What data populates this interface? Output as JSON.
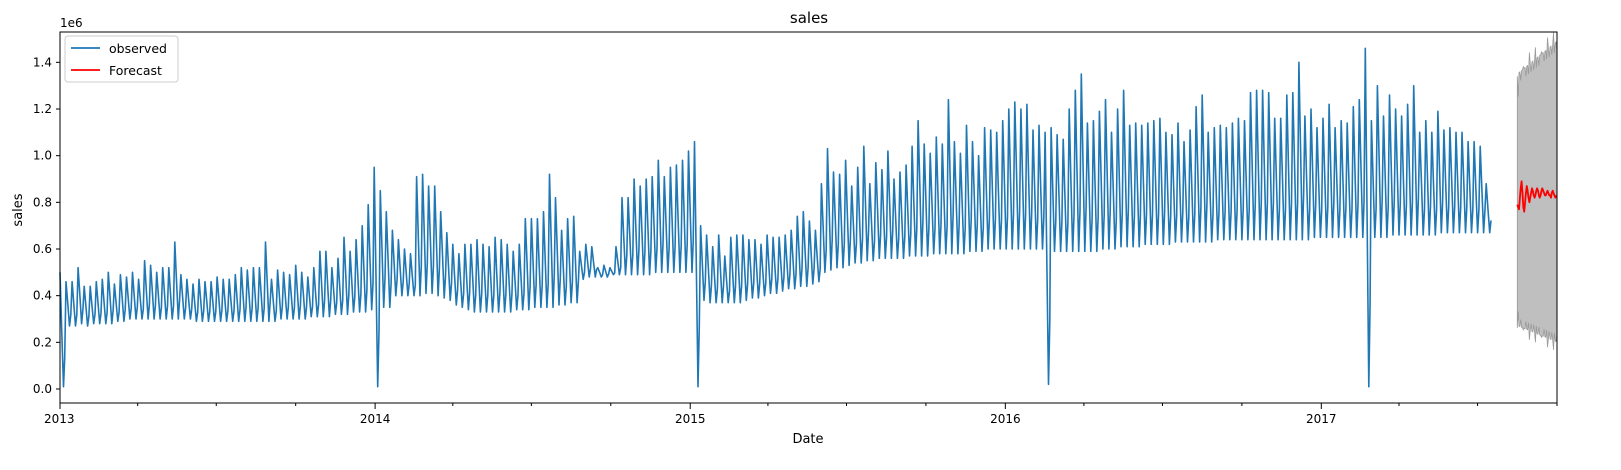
{
  "chart_data": {
    "type": "line",
    "title": "sales",
    "xlabel": "Date",
    "ylabel": "sales",
    "y_offset_label": "1e6",
    "xlim": [
      "2013-01-01",
      "2017-10-01"
    ],
    "ylim": [
      -0.06,
      1.53
    ],
    "y_ticks": [
      0.0,
      0.2,
      0.4,
      0.6,
      0.8,
      1.0,
      1.2,
      1.4
    ],
    "y_tick_labels": [
      "0.0",
      "0.2",
      "0.4",
      "0.6",
      "0.8",
      "1.0",
      "1.2",
      "1.4"
    ],
    "x_ticks": [
      "2013-01-01",
      "2014-01-01",
      "2015-01-01",
      "2016-01-01",
      "2017-01-01"
    ],
    "x_tick_labels": [
      "2013",
      "2014",
      "2015",
      "2016",
      "2017"
    ],
    "legend": {
      "position": "top-left",
      "entries": [
        "observed",
        "Forecast"
      ]
    },
    "grid": false,
    "series": [
      {
        "name": "observed",
        "color": "#1f77b4",
        "step": "weekly",
        "x_start": "2013-01-01",
        "weekly_min": [
          0.01,
          0.27,
          0.27,
          0.28,
          0.27,
          0.28,
          0.28,
          0.28,
          0.28,
          0.29,
          0.29,
          0.3,
          0.3,
          0.3,
          0.3,
          0.3,
          0.3,
          0.3,
          0.3,
          0.3,
          0.3,
          0.3,
          0.29,
          0.29,
          0.29,
          0.29,
          0.29,
          0.29,
          0.29,
          0.29,
          0.29,
          0.29,
          0.29,
          0.29,
          0.29,
          0.29,
          0.3,
          0.3,
          0.3,
          0.3,
          0.3,
          0.31,
          0.31,
          0.31,
          0.31,
          0.32,
          0.32,
          0.32,
          0.33,
          0.33,
          0.33,
          0.34,
          0.01,
          0.35,
          0.35,
          0.4,
          0.4,
          0.4,
          0.4,
          0.4,
          0.41,
          0.41,
          0.4,
          0.39,
          0.38,
          0.36,
          0.35,
          0.34,
          0.33,
          0.33,
          0.33,
          0.33,
          0.33,
          0.33,
          0.33,
          0.34,
          0.34,
          0.34,
          0.35,
          0.35,
          0.35,
          0.35,
          0.36,
          0.36,
          0.37,
          0.37,
          0.47,
          0.48,
          0.48,
          0.48,
          0.48,
          0.49,
          0.49,
          0.49,
          0.49,
          0.49,
          0.49,
          0.49,
          0.5,
          0.5,
          0.5,
          0.5,
          0.5,
          0.5,
          0.5,
          0.01,
          0.38,
          0.37,
          0.37,
          0.37,
          0.37,
          0.37,
          0.37,
          0.38,
          0.39,
          0.39,
          0.4,
          0.41,
          0.41,
          0.42,
          0.43,
          0.43,
          0.44,
          0.44,
          0.45,
          0.46,
          0.5,
          0.51,
          0.52,
          0.52,
          0.53,
          0.54,
          0.54,
          0.55,
          0.55,
          0.56,
          0.56,
          0.56,
          0.56,
          0.56,
          0.57,
          0.57,
          0.57,
          0.57,
          0.58,
          0.58,
          0.58,
          0.58,
          0.58,
          0.58,
          0.59,
          0.59,
          0.59,
          0.6,
          0.6,
          0.6,
          0.6,
          0.6,
          0.6,
          0.6,
          0.6,
          0.6,
          0.6,
          0.02,
          0.59,
          0.59,
          0.59,
          0.59,
          0.59,
          0.59,
          0.59,
          0.59,
          0.6,
          0.6,
          0.6,
          0.61,
          0.61,
          0.61,
          0.61,
          0.62,
          0.62,
          0.62,
          0.62,
          0.62,
          0.63,
          0.63,
          0.63,
          0.63,
          0.63,
          0.63,
          0.63,
          0.64,
          0.64,
          0.64,
          0.64,
          0.64,
          0.64,
          0.64,
          0.64,
          0.64,
          0.64,
          0.64,
          0.64,
          0.64,
          0.64,
          0.64,
          0.64,
          0.65,
          0.65,
          0.65,
          0.65,
          0.65,
          0.65,
          0.65,
          0.65,
          0.65,
          0.01,
          0.65,
          0.65,
          0.65,
          0.66,
          0.66,
          0.66,
          0.66,
          0.66,
          0.66,
          0.66,
          0.66,
          0.67,
          0.67,
          0.67,
          0.67,
          0.67,
          0.67,
          0.67,
          0.67,
          0.67,
          0.67,
          0.67,
          0.67,
          0.67,
          0.67,
          0.68,
          0.68,
          0.68,
          0.68,
          0.68,
          0.68,
          0.68,
          0.68
        ],
        "weekly_max": [
          0.5,
          0.46,
          0.46,
          0.52,
          0.44,
          0.44,
          0.46,
          0.47,
          0.5,
          0.45,
          0.49,
          0.48,
          0.5,
          0.47,
          0.55,
          0.53,
          0.5,
          0.52,
          0.52,
          0.63,
          0.49,
          0.47,
          0.45,
          0.47,
          0.46,
          0.46,
          0.48,
          0.47,
          0.47,
          0.49,
          0.52,
          0.51,
          0.52,
          0.52,
          0.63,
          0.47,
          0.51,
          0.5,
          0.49,
          0.53,
          0.5,
          0.48,
          0.52,
          0.59,
          0.59,
          0.52,
          0.56,
          0.65,
          0.59,
          0.64,
          0.7,
          0.79,
          0.95,
          0.85,
          0.76,
          0.68,
          0.64,
          0.6,
          0.58,
          0.91,
          0.92,
          0.87,
          0.87,
          0.76,
          0.67,
          0.62,
          0.58,
          0.62,
          0.62,
          0.64,
          0.62,
          0.61,
          0.65,
          0.64,
          0.62,
          0.59,
          0.62,
          0.73,
          0.73,
          0.73,
          0.76,
          0.92,
          0.82,
          0.68,
          0.73,
          0.74,
          0.59,
          0.62,
          0.61,
          0.52,
          0.53,
          0.52,
          0.61,
          0.82,
          0.82,
          0.9,
          0.87,
          0.9,
          0.91,
          0.98,
          0.91,
          0.95,
          0.96,
          0.98,
          1.02,
          1.06,
          0.7,
          0.66,
          0.61,
          0.66,
          0.57,
          0.65,
          0.66,
          0.66,
          0.64,
          0.64,
          0.62,
          0.66,
          0.65,
          0.65,
          0.66,
          0.68,
          0.74,
          0.76,
          0.72,
          0.68,
          0.88,
          1.03,
          0.93,
          0.92,
          0.98,
          0.87,
          0.95,
          1.04,
          0.88,
          0.97,
          0.94,
          1.02,
          0.9,
          0.93,
          0.96,
          1.04,
          1.15,
          1.05,
          1.01,
          1.08,
          1.05,
          1.24,
          1.06,
          1.01,
          1.13,
          1.06,
          1.0,
          1.12,
          1.11,
          1.1,
          1.15,
          1.2,
          1.23,
          1.2,
          1.22,
          1.11,
          1.13,
          1.1,
          1.12,
          1.09,
          1.07,
          1.2,
          1.28,
          1.35,
          1.14,
          1.15,
          1.19,
          1.24,
          1.1,
          1.2,
          1.28,
          1.13,
          1.14,
          1.13,
          1.14,
          1.15,
          1.16,
          1.1,
          1.09,
          1.14,
          1.06,
          1.11,
          1.21,
          1.26,
          1.1,
          1.12,
          1.13,
          1.12,
          1.14,
          1.16,
          1.15,
          1.27,
          1.28,
          1.28,
          1.27,
          1.16,
          1.16,
          1.26,
          1.27,
          1.4,
          1.17,
          1.2,
          1.12,
          1.16,
          1.22,
          1.12,
          1.15,
          1.14,
          1.21,
          1.24,
          1.46,
          1.15,
          1.3,
          1.17,
          1.26,
          1.2,
          1.17,
          1.22,
          1.3,
          1.1,
          1.15,
          1.1,
          1.19,
          1.11,
          1.12,
          1.1,
          1.1,
          1.06,
          1.06,
          1.04,
          0.88
        ]
      },
      {
        "name": "Forecast",
        "color": "#ff0000",
        "x_start": "2017-08-16",
        "step": "daily",
        "y": [
          0.79,
          0.78,
          0.77,
          0.82,
          0.86,
          0.89,
          0.84,
          0.78,
          0.76,
          0.8,
          0.84,
          0.87,
          0.85,
          0.82,
          0.8,
          0.82,
          0.84,
          0.86,
          0.85,
          0.83,
          0.82,
          0.83,
          0.85,
          0.86,
          0.85,
          0.83,
          0.82,
          0.83,
          0.85,
          0.86,
          0.85,
          0.84,
          0.83,
          0.83,
          0.84,
          0.85,
          0.84,
          0.83,
          0.83,
          0.82,
          0.84,
          0.85,
          0.84,
          0.83,
          0.82,
          0.83
        ]
      }
    ],
    "confidence_band": {
      "color": "#bfbfbf",
      "x_start": "2017-08-16",
      "x_end": "2017-10-01",
      "lower_start": 0.31,
      "lower_end": 0.24,
      "upper_start": 1.28,
      "upper_end": 1.42
    }
  }
}
